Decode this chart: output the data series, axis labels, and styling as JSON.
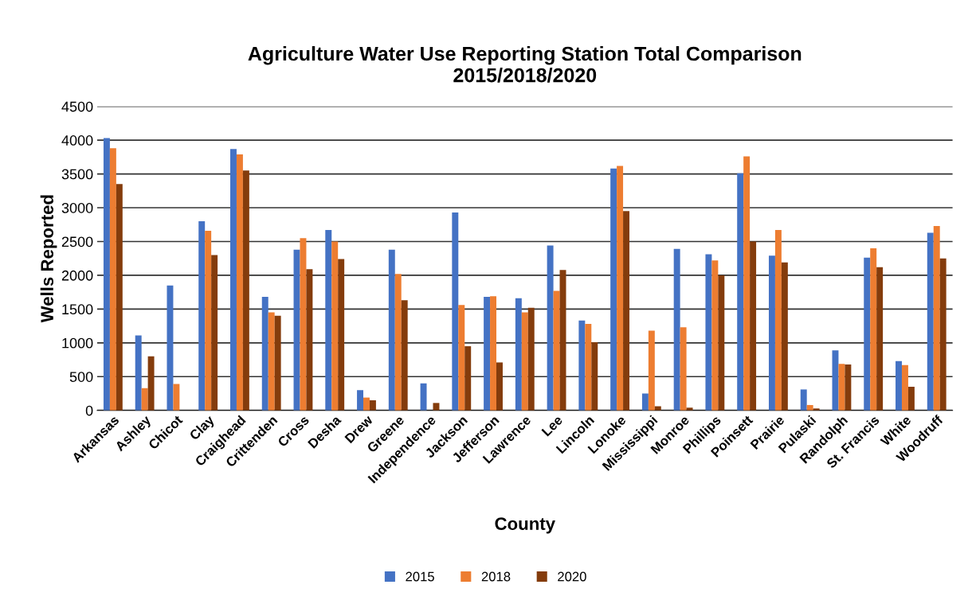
{
  "chart_data": {
    "type": "bar",
    "title": "Agriculture Water Use Reporting Station Total Comparison\n2015/2018/2020",
    "xlabel": "County",
    "ylabel": "Wells Reported",
    "categories": [
      "Arkansas",
      "Ashley",
      "Chicot",
      "Clay",
      "Craighead",
      "Crittenden",
      "Cross",
      "Desha",
      "Drew",
      "Greene",
      "Independence",
      "Jackson",
      "Jefferson",
      "Lawrence",
      "Lee",
      "Lincoln",
      "Lonoke",
      "Mississippi",
      "Monroe",
      "Phillips",
      "Poinsett",
      "Prairie",
      "Pulaski",
      "Randolph",
      "St. Francis",
      "White",
      "Woodruff"
    ],
    "series": [
      {
        "name": "2015",
        "color": "#4472c4",
        "values": [
          4030,
          1110,
          1850,
          2800,
          3870,
          1680,
          2380,
          2670,
          300,
          2380,
          400,
          2930,
          1680,
          1660,
          2440,
          1330,
          3580,
          250,
          2390,
          2310,
          3510,
          2290,
          310,
          890,
          2260,
          730,
          2630
        ]
      },
      {
        "name": "2018",
        "color": "#ed7d31",
        "values": [
          3880,
          330,
          390,
          2660,
          3790,
          1450,
          2550,
          2500,
          190,
          2020,
          0,
          1560,
          1690,
          1450,
          1770,
          1280,
          3620,
          1180,
          1230,
          2220,
          3760,
          2670,
          80,
          690,
          2400,
          670,
          2730
        ]
      },
      {
        "name": "2020",
        "color": "#843c0c",
        "values": [
          3350,
          800,
          0,
          2300,
          3550,
          1400,
          2090,
          2240,
          150,
          1630,
          110,
          950,
          710,
          1520,
          2080,
          1010,
          2950,
          60,
          40,
          2000,
          2500,
          2190,
          30,
          680,
          2120,
          350,
          2250
        ]
      }
    ],
    "ylim": [
      0,
      4500
    ],
    "yticks": [
      0,
      500,
      1000,
      1500,
      2000,
      2500,
      3000,
      3500,
      4000,
      4500
    ],
    "grid": "y",
    "legend": "bottom"
  }
}
